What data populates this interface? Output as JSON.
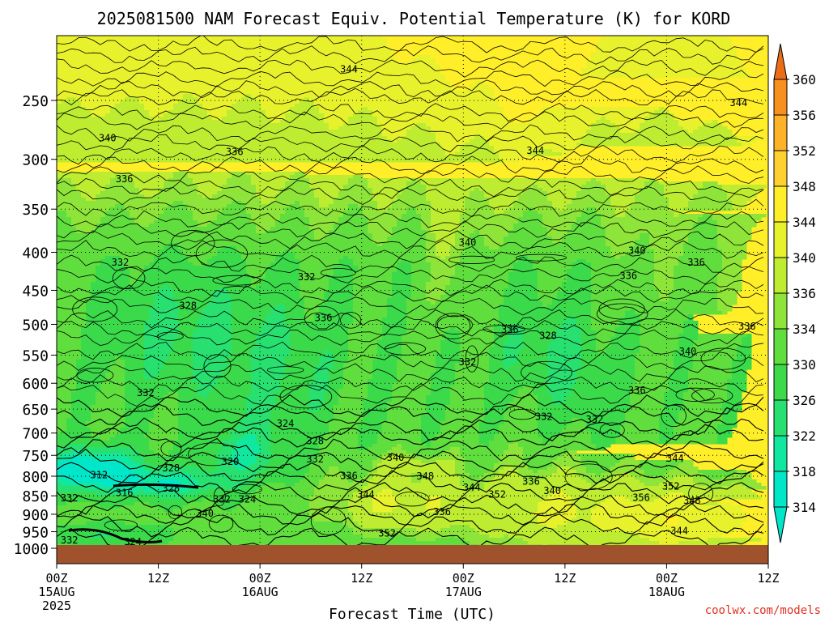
{
  "chart_data": {
    "type": "heatmap",
    "title": "2025081500 NAM Forecast Equiv. Potential Temperature (K) for KORD",
    "xlabel": "Forecast Time (UTC)",
    "ylabel": "",
    "credit": "coolwx.com/models",
    "x_ticks": [
      {
        "label": "00Z",
        "sub": "15AUG",
        "sub2": "2025",
        "hour": 0
      },
      {
        "label": "12Z",
        "sub": "",
        "sub2": "",
        "hour": 12
      },
      {
        "label": "00Z",
        "sub": "16AUG",
        "sub2": "",
        "hour": 24
      },
      {
        "label": "12Z",
        "sub": "",
        "sub2": "",
        "hour": 36
      },
      {
        "label": "00Z",
        "sub": "17AUG",
        "sub2": "",
        "hour": 48
      },
      {
        "label": "12Z",
        "sub": "",
        "sub2": "",
        "hour": 60
      },
      {
        "label": "00Z",
        "sub": "18AUG",
        "sub2": "",
        "hour": 72
      },
      {
        "label": "12Z",
        "sub": "",
        "sub2": "",
        "hour": 84
      }
    ],
    "xlim": [
      0,
      84
    ],
    "y_ticks": [
      250,
      300,
      350,
      400,
      450,
      500,
      550,
      600,
      650,
      700,
      750,
      800,
      850,
      900,
      950,
      1000
    ],
    "ylim": [
      200,
      1015
    ],
    "y_scale": "log (pressure)",
    "grid": true,
    "colorbar": {
      "labels": [
        314,
        318,
        322,
        326,
        330,
        334,
        336,
        340,
        344,
        348,
        352,
        356,
        360
      ],
      "levels": [
        {
          "value": 314,
          "color": "#00e6c8"
        },
        {
          "value": 318,
          "color": "#10e8a0"
        },
        {
          "value": 322,
          "color": "#28e070"
        },
        {
          "value": 326,
          "color": "#3ada4a"
        },
        {
          "value": 330,
          "color": "#60de3e"
        },
        {
          "value": 334,
          "color": "#8ee438"
        },
        {
          "value": 336,
          "color": "#bdec30"
        },
        {
          "value": 340,
          "color": "#e8f22c"
        },
        {
          "value": 344,
          "color": "#ffee28"
        },
        {
          "value": 348,
          "color": "#ffd030"
        },
        {
          "value": 352,
          "color": "#fdb228"
        },
        {
          "value": 356,
          "color": "#f89020"
        },
        {
          "value": 360,
          "color": "#ea6e18"
        }
      ]
    },
    "ground_color": "#a0522d",
    "contour_labels": [
      {
        "text": "344",
        "hour": 34.5,
        "p": 227
      },
      {
        "text": "344",
        "hour": 80.5,
        "p": 252
      },
      {
        "text": "340",
        "hour": 6.0,
        "p": 281
      },
      {
        "text": "344",
        "hour": 56.5,
        "p": 292
      },
      {
        "text": "336",
        "hour": 21.0,
        "p": 293
      },
      {
        "text": "336",
        "hour": 8.0,
        "p": 319
      },
      {
        "text": "340",
        "hour": 48.5,
        "p": 388
      },
      {
        "text": "340",
        "hour": 68.5,
        "p": 398
      },
      {
        "text": "332",
        "hour": 7.5,
        "p": 413
      },
      {
        "text": "336",
        "hour": 75.5,
        "p": 413
      },
      {
        "text": "336",
        "hour": 67.5,
        "p": 430
      },
      {
        "text": "332",
        "hour": 29.5,
        "p": 432
      },
      {
        "text": "328",
        "hour": 15.5,
        "p": 472
      },
      {
        "text": "336",
        "hour": 31.5,
        "p": 490
      },
      {
        "text": "336",
        "hour": 53.5,
        "p": 508
      },
      {
        "text": "336",
        "hour": 81.5,
        "p": 503
      },
      {
        "text": "328",
        "hour": 58.0,
        "p": 518
      },
      {
        "text": "340",
        "hour": 74.5,
        "p": 544
      },
      {
        "text": "332",
        "hour": 48.5,
        "p": 562
      },
      {
        "text": "332",
        "hour": 10.5,
        "p": 618
      },
      {
        "text": "336",
        "hour": 68.5,
        "p": 613
      },
      {
        "text": "332",
        "hour": 57.5,
        "p": 665
      },
      {
        "text": "332",
        "hour": 63.5,
        "p": 671
      },
      {
        "text": "324",
        "hour": 27.0,
        "p": 680
      },
      {
        "text": "328",
        "hour": 30.5,
        "p": 717
      },
      {
        "text": "332",
        "hour": 30.5,
        "p": 759
      },
      {
        "text": "340",
        "hour": 40.0,
        "p": 755
      },
      {
        "text": "344",
        "hour": 73.0,
        "p": 757
      },
      {
        "text": "320",
        "hour": 20.5,
        "p": 765
      },
      {
        "text": "328",
        "hour": 13.5,
        "p": 780
      },
      {
        "text": "312",
        "hour": 5.0,
        "p": 797
      },
      {
        "text": "336",
        "hour": 34.5,
        "p": 799
      },
      {
        "text": "348",
        "hour": 43.5,
        "p": 800
      },
      {
        "text": "336",
        "hour": 56.0,
        "p": 813
      },
      {
        "text": "352",
        "hour": 72.5,
        "p": 826
      },
      {
        "text": "344",
        "hour": 49.0,
        "p": 829
      },
      {
        "text": "340",
        "hour": 58.5,
        "p": 837
      },
      {
        "text": "316",
        "hour": 8.0,
        "p": 842
      },
      {
        "text": "328",
        "hour": 13.5,
        "p": 831
      },
      {
        "text": "352",
        "hour": 52.0,
        "p": 846
      },
      {
        "text": "344",
        "hour": 36.5,
        "p": 846
      },
      {
        "text": "356",
        "hour": 69.0,
        "p": 855
      },
      {
        "text": "332",
        "hour": 1.5,
        "p": 856
      },
      {
        "text": "332",
        "hour": 19.5,
        "p": 859
      },
      {
        "text": "324",
        "hour": 22.5,
        "p": 859
      },
      {
        "text": "348",
        "hour": 75.0,
        "p": 862
      },
      {
        "text": "340",
        "hour": 17.5,
        "p": 898
      },
      {
        "text": "336",
        "hour": 45.5,
        "p": 893
      },
      {
        "text": "352",
        "hour": 39.0,
        "p": 955
      },
      {
        "text": "344",
        "hour": 73.5,
        "p": 948
      },
      {
        "text": "332",
        "hour": 1.5,
        "p": 975
      },
      {
        "text": "324",
        "hour": 9.0,
        "p": 980
      }
    ]
  }
}
